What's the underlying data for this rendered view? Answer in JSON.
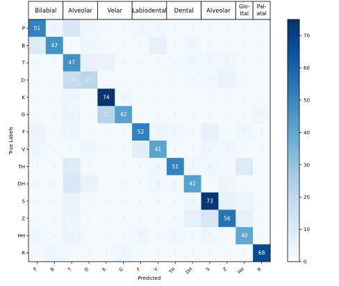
{
  "chart_data": {
    "type": "heatmap",
    "xlabel": "Predicted",
    "ylabel": "True Labels",
    "row_labels": [
      "P",
      "B",
      "T",
      "D",
      "K",
      "G",
      "F",
      "V",
      "TH",
      "DH",
      "S",
      "Z",
      "HH",
      "R"
    ],
    "col_labels": [
      "P",
      "B",
      "T",
      "D",
      "K",
      "G",
      "F",
      "V",
      "TH",
      "DH",
      "S",
      "Z",
      "HH",
      "R"
    ],
    "values": [
      [
        51,
        4,
        12,
        3,
        1,
        1,
        3,
        3,
        1,
        1,
        1,
        1,
        1,
        1
      ],
      [
        10,
        47,
        1,
        3,
        1,
        1,
        1,
        6,
        1,
        3,
        1,
        1,
        1,
        1
      ],
      [
        1,
        1,
        47,
        6,
        5,
        1,
        1,
        1,
        2,
        3,
        3,
        3,
        1,
        1
      ],
      [
        1,
        1,
        18,
        21,
        1,
        1,
        1,
        1,
        1,
        3,
        3,
        5,
        1,
        1
      ],
      [
        1,
        1,
        3,
        1,
        74,
        3,
        1,
        1,
        1,
        1,
        1,
        1,
        1,
        1
      ],
      [
        1,
        1,
        4,
        1,
        22,
        42,
        1,
        1,
        1,
        1,
        1,
        1,
        1,
        3
      ],
      [
        4,
        1,
        3,
        1,
        1,
        1,
        52,
        4,
        3,
        1,
        6,
        1,
        3,
        1
      ],
      [
        3,
        1,
        1,
        3,
        1,
        1,
        8,
        41,
        1,
        1,
        3,
        3,
        1,
        1
      ],
      [
        1,
        1,
        10,
        1,
        1,
        1,
        1,
        3,
        51,
        3,
        3,
        1,
        10,
        1
      ],
      [
        1,
        1,
        12,
        5,
        1,
        1,
        1,
        3,
        3,
        42,
        1,
        3,
        1,
        1
      ],
      [
        1,
        1,
        5,
        1,
        1,
        1,
        1,
        1,
        1,
        3,
        73,
        6,
        4,
        1
      ],
      [
        1,
        1,
        4,
        1,
        1,
        1,
        1,
        1,
        1,
        6,
        12,
        56,
        6,
        1
      ],
      [
        3,
        1,
        4,
        1,
        1,
        1,
        3,
        1,
        3,
        1,
        3,
        1,
        40,
        1
      ],
      [
        1,
        3,
        1,
        1,
        1,
        3,
        1,
        1,
        1,
        1,
        1,
        1,
        1,
        68
      ]
    ],
    "groups": [
      {
        "label": [
          "Bilabial"
        ],
        "span": 2
      },
      {
        "label": [
          "Alveolar"
        ],
        "span": 2
      },
      {
        "label": [
          "Velar"
        ],
        "span": 2
      },
      {
        "label": [
          "Labiodental"
        ],
        "span": 2
      },
      {
        "label": [
          "Dental"
        ],
        "span": 2
      },
      {
        "label": [
          "Alveolar"
        ],
        "span": 2
      },
      {
        "label": [
          "Glo-",
          "ttal"
        ],
        "span": 1
      },
      {
        "label": [
          "Pal-",
          "atal"
        ],
        "span": 1
      }
    ],
    "colorbar": {
      "min": 0,
      "max": 75,
      "ticks": [
        0,
        10,
        20,
        30,
        40,
        50,
        60,
        70
      ]
    },
    "colormap": [
      "#f7fbff",
      "#deebf7",
      "#c6dbef",
      "#9ecae1",
      "#6baed6",
      "#4292c6",
      "#2171b5",
      "#08519c",
      "#08306b"
    ]
  }
}
